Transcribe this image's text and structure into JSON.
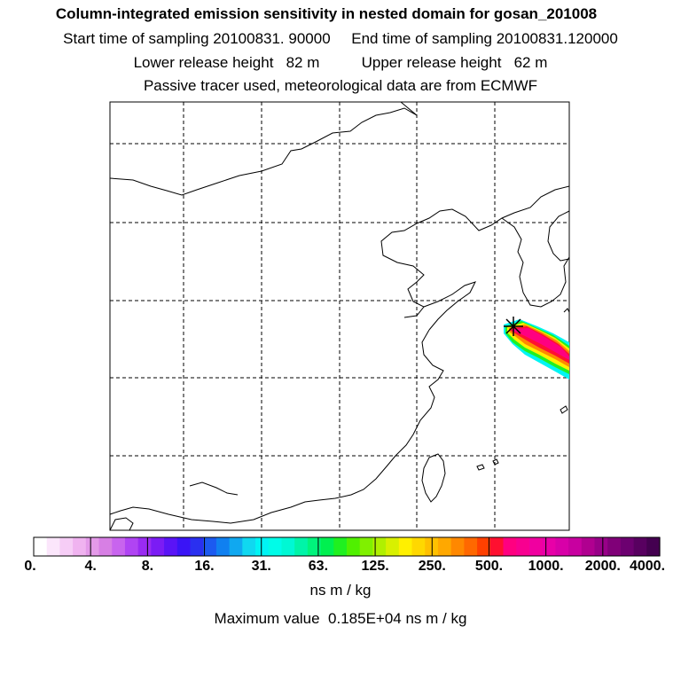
{
  "header": {
    "title": "Column-integrated emission sensitivity in nested domain for gosan_201008",
    "sampling_line": "Start time of sampling 20100831. 90000     End time of sampling 20100831.120000",
    "release_line": "Lower release height   82 m          Upper release height   62 m",
    "tracer_line": "Passive tracer used, meteorological data are from ECMWF"
  },
  "colorbar": {
    "tick_labels": [
      "0.",
      "4.",
      "8.",
      "16.",
      "31.",
      "63.",
      "125.",
      "250.",
      "500.",
      "1000.",
      "2000.",
      "4000."
    ],
    "colors": [
      "#ffffff",
      "#fbe6fb",
      "#f6cdf6",
      "#f0b3f0",
      "#e49ae9",
      "#d77fe4",
      "#c864ee",
      "#b044f3",
      "#9a2bf2",
      "#7b1cf4",
      "#5a14f6",
      "#3a14f6",
      "#2a30f0",
      "#1c5af0",
      "#1080f0",
      "#10a8f0",
      "#10d8f0",
      "#00f4f4",
      "#00fce8",
      "#00f8d4",
      "#00f4a8",
      "#00f47c",
      "#00f050",
      "#20f020",
      "#50f000",
      "#80f000",
      "#b0f000",
      "#d8f000",
      "#fff000",
      "#ffd800",
      "#ffc000",
      "#ffa800",
      "#ff8800",
      "#ff6800",
      "#ff4000",
      "#ff1030",
      "#ff0080",
      "#f80090",
      "#f000a0",
      "#e800a8",
      "#d800a8",
      "#c800a0",
      "#b00090",
      "#980088",
      "#800078",
      "#6c0070",
      "#580060",
      "#440050"
    ],
    "units": "ns m / kg"
  },
  "maximum": {
    "text": "Maximum value  0.185E+04 ns m / kg"
  },
  "map": {
    "receptor_marker": "star-marker",
    "plume_colors": [
      "#00f4f4",
      "#20f020",
      "#fff000",
      "#ff8800",
      "#ff1030",
      "#ff0080"
    ]
  }
}
